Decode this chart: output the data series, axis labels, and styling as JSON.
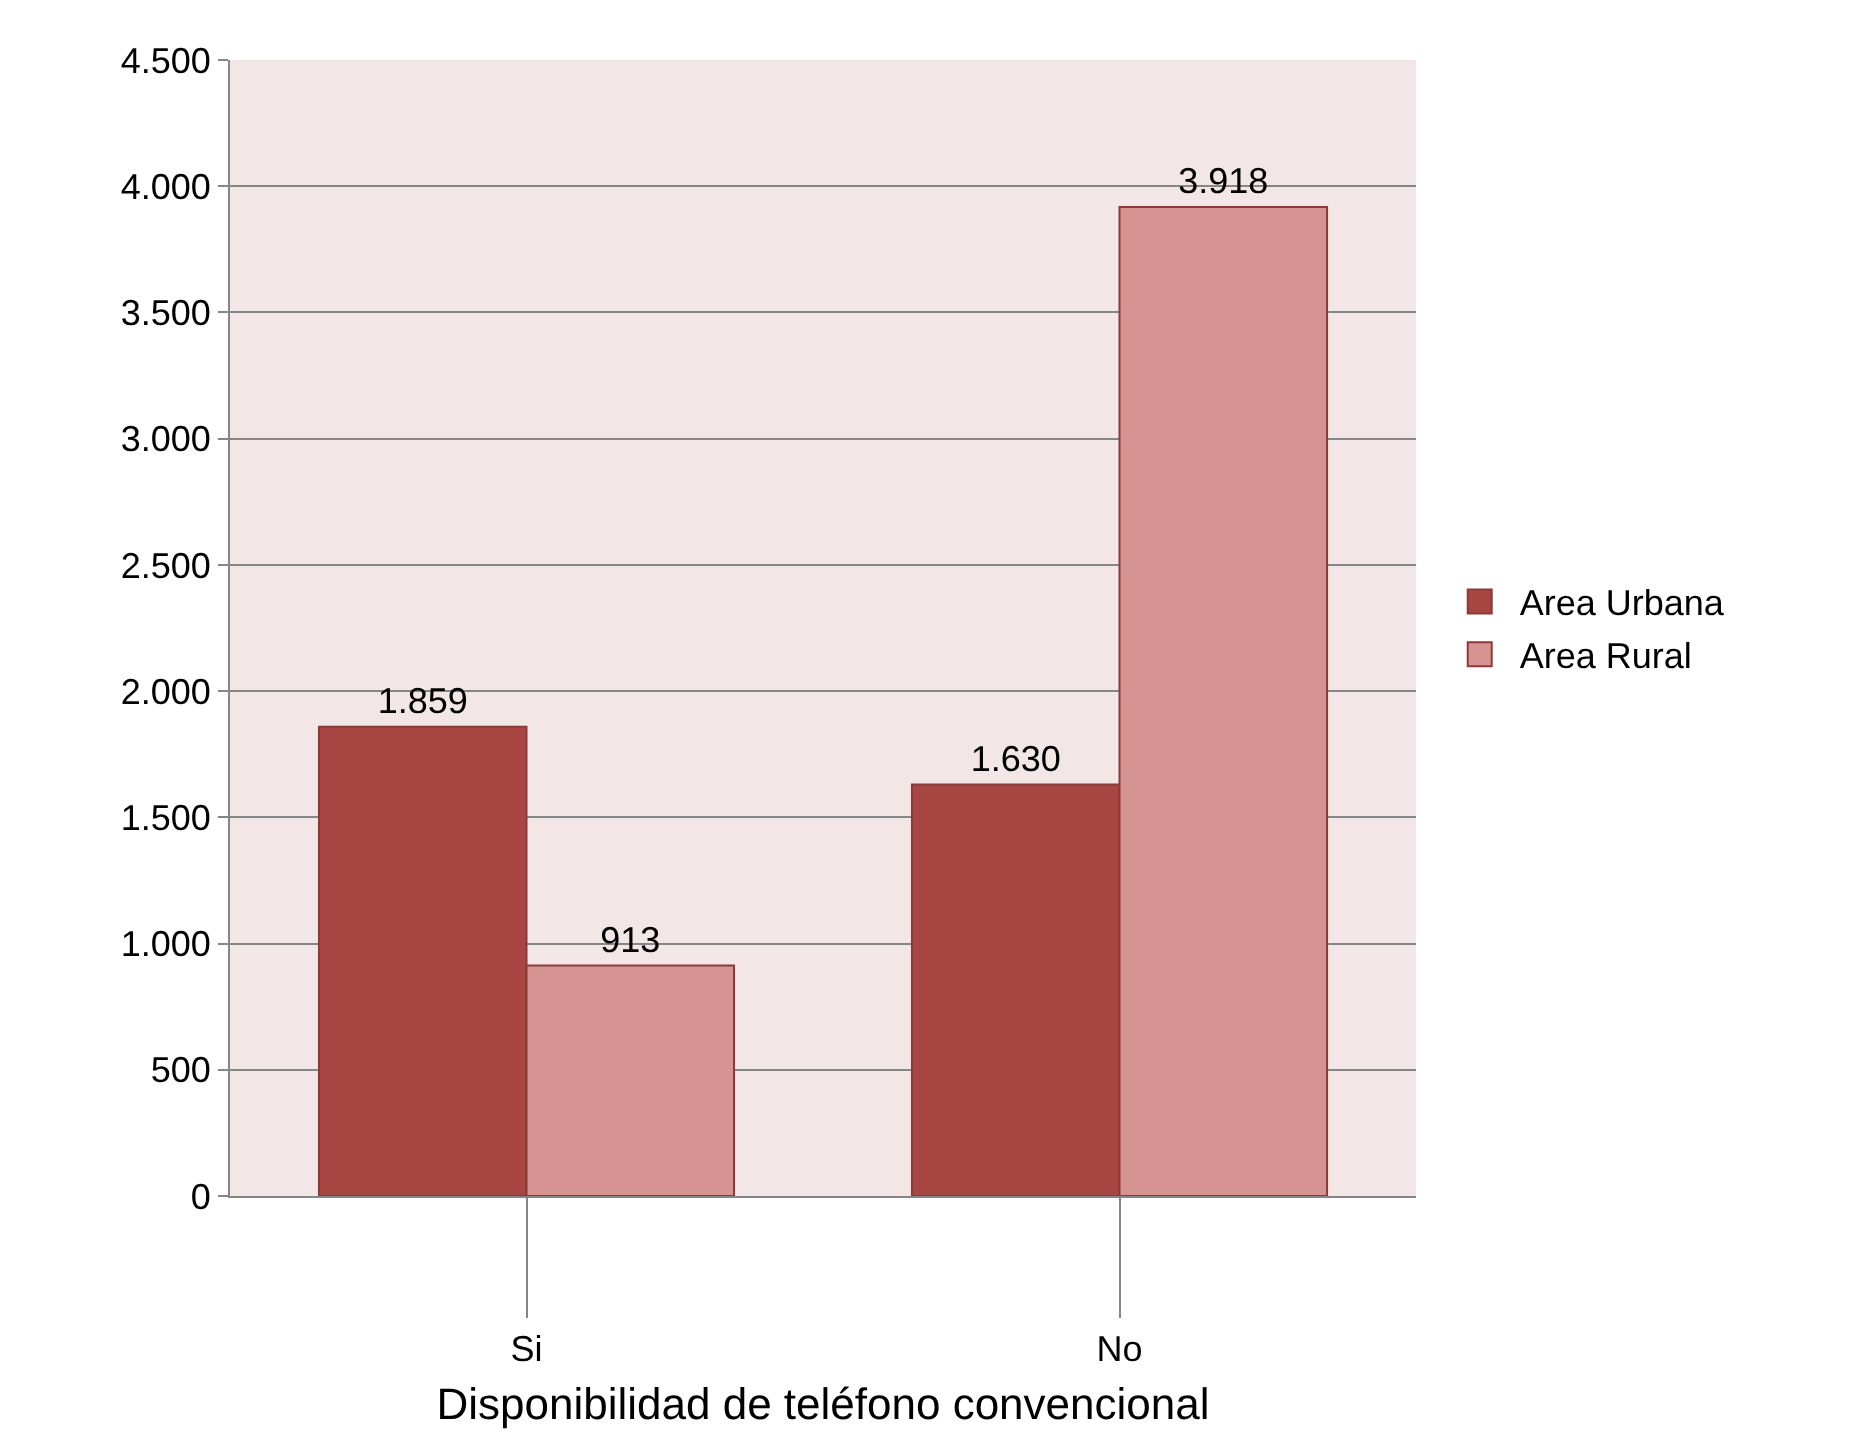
{
  "chart_data": {
    "type": "bar",
    "categories": [
      "Si",
      "No"
    ],
    "xlabel": "Disponibilidad de teléfono convencional",
    "series": [
      {
        "name": "Area Urbana",
        "color": "#a84644",
        "values": [
          1859,
          1630
        ],
        "value_labels": [
          "1.859",
          "1.630"
        ]
      },
      {
        "name": "Area Rural",
        "color": "#d59391",
        "values": [
          913,
          3918
        ],
        "value_labels": [
          "913",
          "3.918"
        ]
      }
    ],
    "ylim": [
      0,
      4500
    ],
    "yticks": [
      {
        "value": 0,
        "label": "0"
      },
      {
        "value": 500,
        "label": "500"
      },
      {
        "value": 1000,
        "label": "1.000"
      },
      {
        "value": 1500,
        "label": "1.500"
      },
      {
        "value": 2000,
        "label": "2.000"
      },
      {
        "value": 2500,
        "label": "2.500"
      },
      {
        "value": 3000,
        "label": "3.000"
      },
      {
        "value": 3500,
        "label": "3.500"
      },
      {
        "value": 4000,
        "label": "4.000"
      },
      {
        "value": 4500,
        "label": "4.500"
      }
    ],
    "grid": "y",
    "legend": "right"
  }
}
